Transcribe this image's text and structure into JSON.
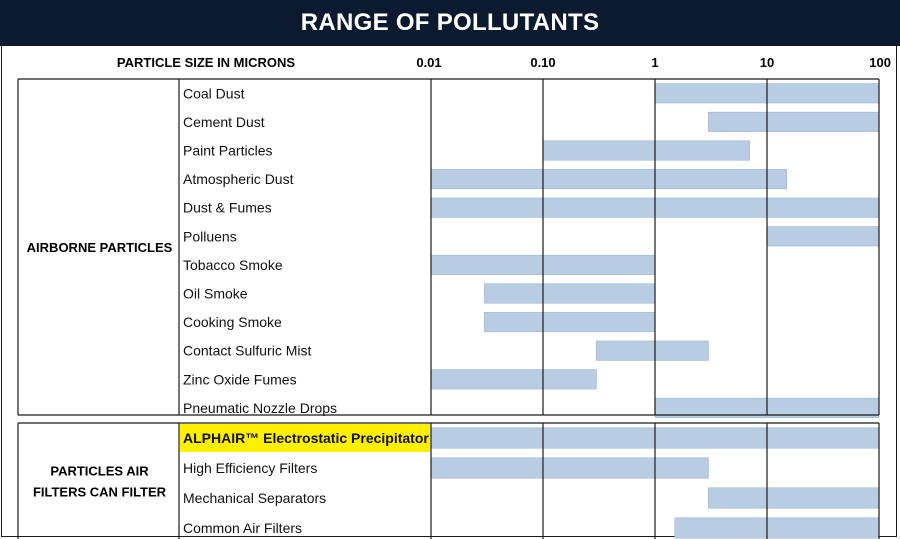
{
  "title": "RANGE OF POLLUTANTS",
  "chart_data": {
    "type": "range-bar",
    "title": "RANGE OF POLLUTANTS",
    "xlabel": "PARTICLE SIZE IN MICRONS",
    "x_scale": "log",
    "xlim": [
      0.01,
      100
    ],
    "x_ticks": [
      {
        "value": 0.01,
        "label": "0.01"
      },
      {
        "value": 0.1,
        "label": "0.10"
      },
      {
        "value": 1,
        "label": "1"
      },
      {
        "value": 10,
        "label": "10"
      },
      {
        "value": 100,
        "label": "100"
      }
    ],
    "bar_color": "#b8cce4",
    "highlight_color": "#ffef00",
    "groups": [
      {
        "label": "AIRBORNE PARTICLES",
        "items": [
          {
            "label": "Coal Dust",
            "min": 1,
            "max": 100
          },
          {
            "label": "Cement Dust",
            "min": 3,
            "max": 100
          },
          {
            "label": "Paint Particles",
            "min": 0.1,
            "max": 7
          },
          {
            "label": "Atmospheric Dust",
            "min": 0.01,
            "max": 15
          },
          {
            "label": "Dust & Fumes",
            "min": 0.01,
            "max": 100
          },
          {
            "label": "Polluens",
            "min": 10,
            "max": 100
          },
          {
            "label": "Tobacco Smoke",
            "min": 0.01,
            "max": 1
          },
          {
            "label": "Oil Smoke",
            "min": 0.03,
            "max": 1
          },
          {
            "label": "Cooking Smoke",
            "min": 0.03,
            "max": 1
          },
          {
            "label": "Contact Sulfuric Mist",
            "min": 0.3,
            "max": 3
          },
          {
            "label": "Zinc Oxide Fumes",
            "min": 0.01,
            "max": 0.3
          },
          {
            "label": "Pneumatic Nozzle Drops",
            "min": 1,
            "max": 100
          }
        ]
      },
      {
        "label": "PARTICLES AIR FILTERS CAN FILTER",
        "items": [
          {
            "label": "ALPHAIR™ Electrostatic Precipitator",
            "min": 0.01,
            "max": 100,
            "highlight": true
          },
          {
            "label": "High Efficiency Filters",
            "min": 0.01,
            "max": 3
          },
          {
            "label": "Mechanical Separators",
            "min": 3,
            "max": 100
          },
          {
            "label": "Common Air Filters",
            "min": 1.5,
            "max": 100
          }
        ]
      }
    ]
  }
}
